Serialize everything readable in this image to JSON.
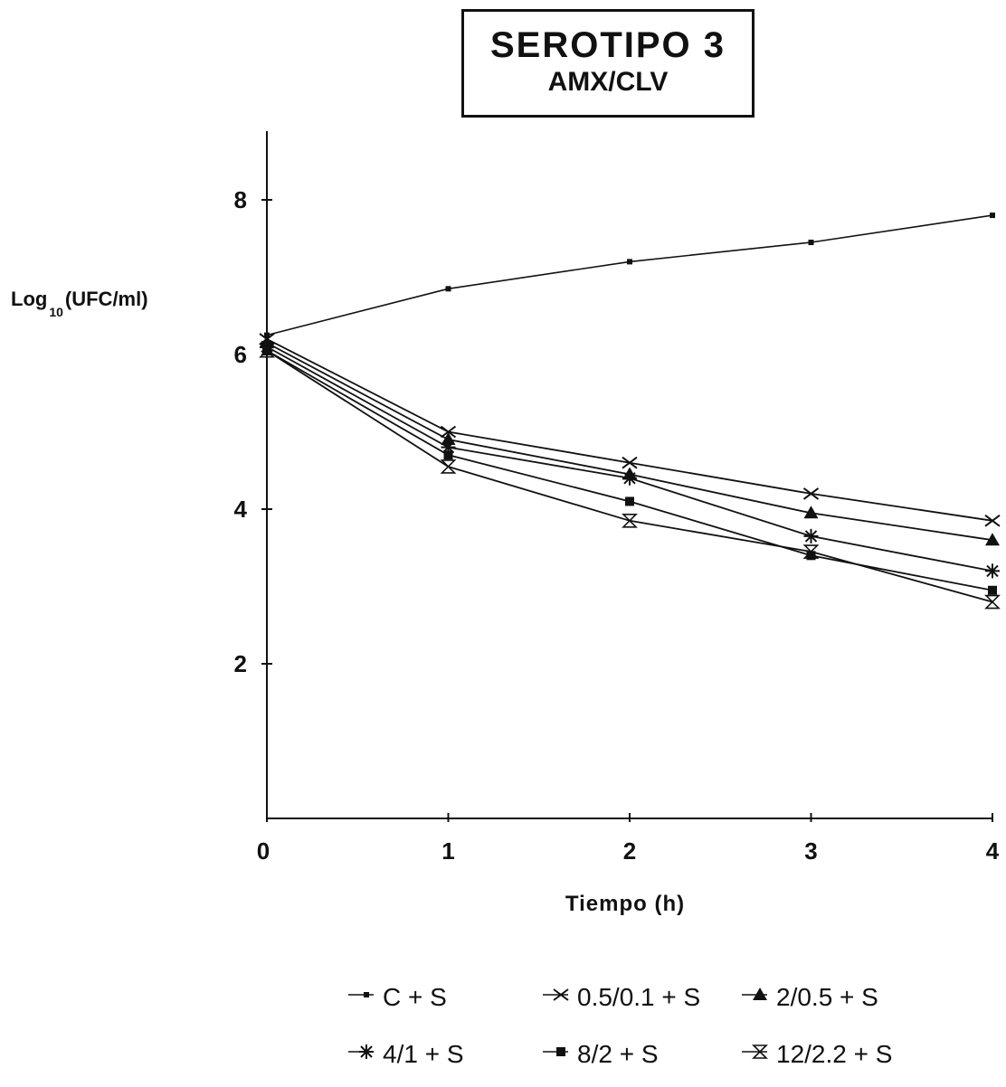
{
  "chart_data": {
    "type": "line",
    "title": "SEROTIPO 3",
    "subtitle": "AMX/CLV",
    "xlabel": "Tiempo (h)",
    "ylabel_main": "Log",
    "ylabel_sub": "10",
    "ylabel_unit": "(UFC/ml)",
    "x": [
      0,
      1,
      2,
      3,
      4
    ],
    "xlim": [
      0,
      4
    ],
    "ylim": [
      0,
      9
    ],
    "x_ticks": [
      "0",
      "1",
      "2",
      "3",
      "4"
    ],
    "y_ticks": [
      2,
      4,
      6,
      8
    ],
    "grid": false,
    "legend_position": "bottom",
    "series": [
      {
        "name": "C + S",
        "marker": "dot",
        "values": [
          6.25,
          6.85,
          7.2,
          7.45,
          7.8
        ]
      },
      {
        "name": "0.5/0.1 + S",
        "marker": "x",
        "values": [
          6.2,
          5.0,
          4.6,
          4.2,
          3.85
        ]
      },
      {
        "name": "2/0.5 + S",
        "marker": "triangle",
        "values": [
          6.15,
          4.9,
          4.45,
          3.95,
          3.6
        ]
      },
      {
        "name": "4/1 + S",
        "marker": "star",
        "values": [
          6.1,
          4.8,
          4.4,
          3.65,
          3.2
        ]
      },
      {
        "name": "8/2 + S",
        "marker": "square",
        "values": [
          6.05,
          4.7,
          4.1,
          3.4,
          2.95
        ]
      },
      {
        "name": "12/2.2 + S",
        "marker": "hourglass",
        "values": [
          6.05,
          4.55,
          3.85,
          3.45,
          2.8
        ]
      }
    ]
  }
}
